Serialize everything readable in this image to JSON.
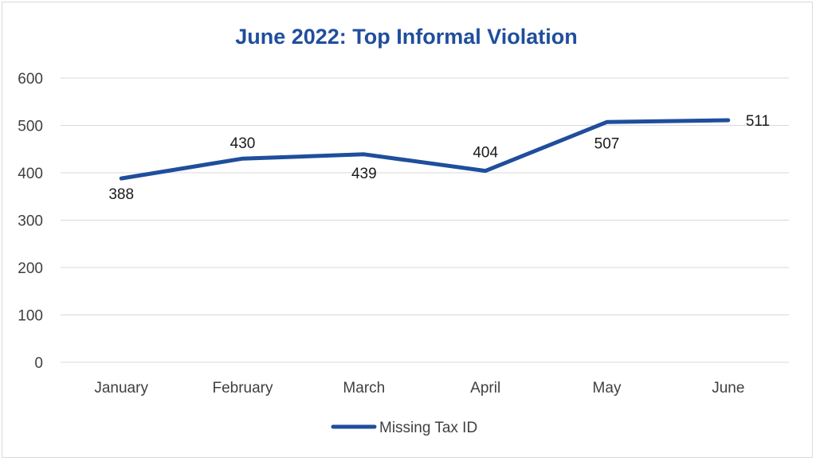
{
  "chart_data": {
    "type": "line",
    "title": "June 2022: Top Informal Violation",
    "categories": [
      "January",
      "February",
      "March",
      "April",
      "May",
      "June"
    ],
    "series": [
      {
        "name": "Missing Tax ID",
        "values": [
          388,
          430,
          439,
          404,
          507,
          511
        ]
      }
    ],
    "data_labels": [
      "388",
      "430",
      "439",
      "404",
      "507",
      "511"
    ],
    "yticks": [
      "0",
      "100",
      "200",
      "300",
      "400",
      "500",
      "600"
    ],
    "ylim": [
      0,
      600
    ],
    "grid": true,
    "legend": "bottom",
    "colors": {
      "title": "#1f4e9c",
      "line": "#1f4e9c",
      "grid": "#d9d9d9"
    }
  }
}
